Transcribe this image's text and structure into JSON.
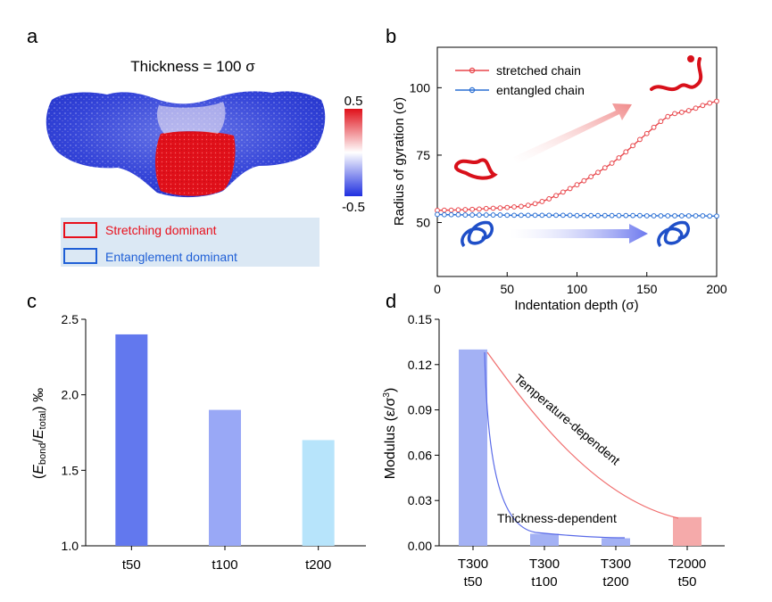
{
  "panel_labels": {
    "a": "a",
    "b": "b",
    "c": "c",
    "d": "d"
  },
  "panel_a": {
    "title": "Thickness = 100 σ",
    "colorbar_max": "0.5",
    "colorbar_min": "-0.5",
    "legend": [
      {
        "label": "Stretching dominant",
        "color": "#e8101c"
      },
      {
        "label": "Entanglement dominant",
        "color": "#1f5fd6"
      }
    ],
    "colors": {
      "hot": "#e0101a",
      "cold": "#2a3ad8",
      "mid": "#ffffff"
    }
  },
  "chart_data": [
    {
      "id": "b",
      "type": "line",
      "xlabel": "Indentation depth (σ)",
      "ylabel": "Radius of gyration (σ)",
      "xlim": [
        0,
        200
      ],
      "ylim": [
        30,
        115
      ],
      "xticks": [
        0,
        50,
        100,
        150,
        200
      ],
      "yticks": [
        50,
        75,
        100
      ],
      "legend_position": "top-left",
      "series": [
        {
          "name": "stretched chain",
          "color": "#e8454a",
          "x": [
            0,
            5,
            10,
            15,
            20,
            25,
            30,
            35,
            40,
            45,
            50,
            55,
            60,
            65,
            70,
            75,
            80,
            85,
            90,
            95,
            100,
            105,
            110,
            115,
            120,
            125,
            130,
            135,
            140,
            145,
            150,
            155,
            160,
            165,
            170,
            175,
            180,
            185,
            190,
            195,
            200
          ],
          "y": [
            54.5,
            54.6,
            54.6,
            54.7,
            54.8,
            54.9,
            55.0,
            55.2,
            55.3,
            55.4,
            55.6,
            55.8,
            56.0,
            56.4,
            57.0,
            57.8,
            58.8,
            60.0,
            61.3,
            62.6,
            64.0,
            65.5,
            67.0,
            68.6,
            70.3,
            72.0,
            74.0,
            76.2,
            78.5,
            80.8,
            83.0,
            85.3,
            87.5,
            89.3,
            90.4,
            90.9,
            91.5,
            92.4,
            93.4,
            94.3,
            95.0
          ]
        },
        {
          "name": "entangled chain",
          "color": "#2a6fd4",
          "x": [
            0,
            5,
            10,
            15,
            20,
            25,
            30,
            35,
            40,
            45,
            50,
            55,
            60,
            65,
            70,
            75,
            80,
            85,
            90,
            95,
            100,
            105,
            110,
            115,
            120,
            125,
            130,
            135,
            140,
            145,
            150,
            155,
            160,
            165,
            170,
            175,
            180,
            185,
            190,
            195,
            200
          ],
          "y": [
            53.0,
            52.9,
            52.9,
            52.9,
            52.8,
            52.8,
            52.8,
            52.8,
            52.8,
            52.8,
            52.7,
            52.7,
            52.7,
            52.7,
            52.7,
            52.7,
            52.7,
            52.7,
            52.7,
            52.7,
            52.6,
            52.6,
            52.6,
            52.6,
            52.6,
            52.6,
            52.6,
            52.6,
            52.6,
            52.6,
            52.5,
            52.5,
            52.5,
            52.5,
            52.5,
            52.5,
            52.5,
            52.5,
            52.5,
            52.4,
            52.4
          ]
        }
      ]
    },
    {
      "id": "c",
      "type": "bar",
      "ylabel": "(E bond/E total) ‰",
      "ylabel_parts": {
        "open": "(",
        "e1": "E",
        "s1": "bond",
        "slash": "/",
        "e2": "E",
        "s2": "total",
        "close": ") ‰"
      },
      "categories": [
        "t50",
        "t100",
        "t200"
      ],
      "values": [
        2.4,
        1.9,
        1.7
      ],
      "colors": [
        "#6278ee",
        "#99a8f6",
        "#b7e4fb"
      ],
      "ylim": [
        1.0,
        2.5
      ],
      "yticks": [
        "1.0",
        "1.5",
        "2.0",
        "2.5"
      ]
    },
    {
      "id": "d",
      "type": "bar",
      "ylabel": "Modulus (ε/σ3)",
      "ylabel_parts": {
        "main": "Modulus (ε/σ",
        "sup": "3",
        "close": ")"
      },
      "categories": [
        [
          "T300",
          "t50"
        ],
        [
          "T300",
          "t100"
        ],
        [
          "T300",
          "t200"
        ],
        [
          "T2000",
          "t50"
        ]
      ],
      "values": [
        0.13,
        0.008,
        0.005,
        0.019
      ],
      "colors": [
        "#a3b1f4",
        "#a3b1f4",
        "#a3b1f4",
        "#f5aaaa"
      ],
      "ylim": [
        0,
        0.15
      ],
      "yticks": [
        "0.00",
        "0.03",
        "0.06",
        "0.09",
        "0.12",
        "0.15"
      ],
      "annotations": [
        "Temperature-dependent",
        "Thickness-dependent"
      ],
      "curve_colors": {
        "temperature": "#f06e6e",
        "thickness": "#5a6be8"
      }
    }
  ]
}
